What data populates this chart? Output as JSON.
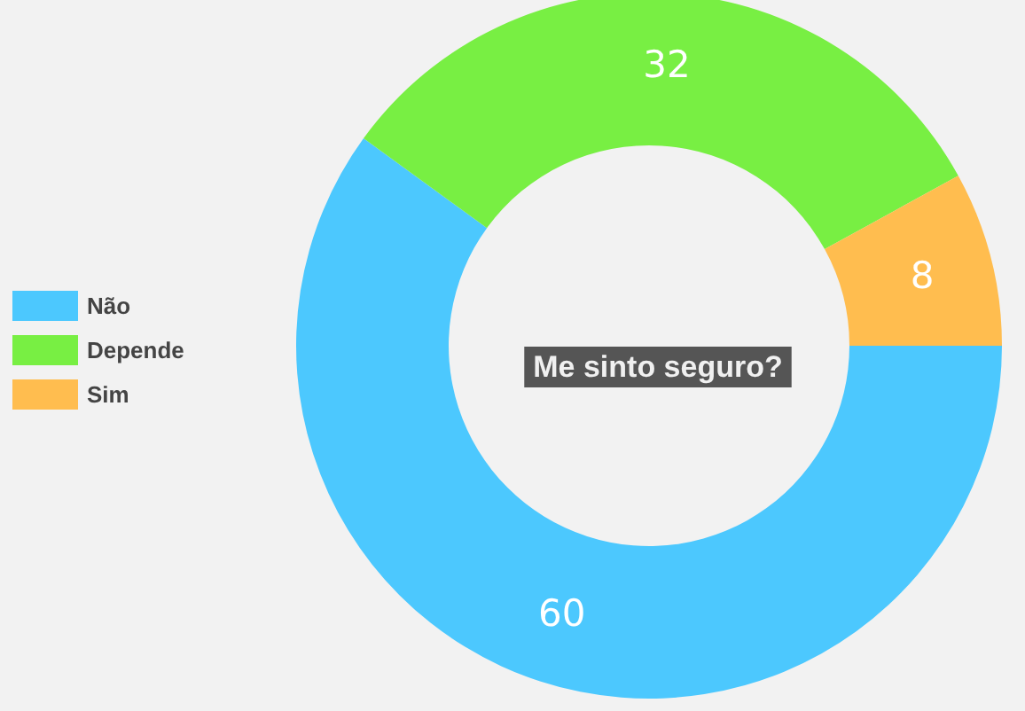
{
  "chart_data": {
    "type": "donut",
    "title": "Me sinto seguro?",
    "categories": [
      "Não",
      "Depende",
      "Sim"
    ],
    "values": [
      60,
      32,
      8
    ],
    "colors": [
      "#4cc8fe",
      "#78ef43",
      "#ffbd4f"
    ],
    "data_labels": true,
    "legend": "left"
  }
}
